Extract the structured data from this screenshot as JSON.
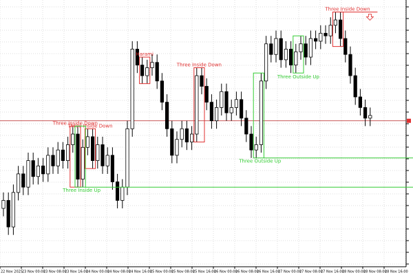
{
  "chart_data": {
    "type": "candlestick",
    "ylim": [
      0,
      100
    ],
    "price_line": 55,
    "up_color": "#ffffff",
    "down_color": "#000000",
    "grid": true,
    "open": [
      22,
      25,
      15,
      28,
      35,
      30,
      40,
      34,
      38,
      35,
      42,
      38,
      44,
      40,
      46,
      50,
      33,
      45,
      49,
      40,
      46,
      38,
      42,
      32,
      25,
      30,
      52,
      82,
      76,
      72,
      75,
      77,
      70,
      62,
      52,
      42,
      48,
      52,
      47,
      50,
      72,
      68,
      62,
      55,
      60,
      66,
      58,
      60,
      63,
      56,
      50,
      44,
      46,
      70,
      84,
      80,
      86,
      78,
      82,
      76,
      81,
      84,
      79,
      86,
      85,
      88,
      87,
      91,
      93,
      86,
      80,
      72,
      64,
      60,
      56
    ],
    "high": [
      28,
      28,
      31,
      38,
      38,
      43,
      43,
      41,
      41,
      45,
      45,
      47,
      47,
      49,
      53,
      53,
      48,
      52,
      52,
      49,
      49,
      45,
      45,
      35,
      33,
      55,
      85,
      85,
      79,
      78,
      80,
      80,
      73,
      65,
      55,
      51,
      55,
      55,
      53,
      75,
      75,
      71,
      65,
      63,
      69,
      69,
      63,
      66,
      66,
      59,
      53,
      49,
      73,
      87,
      87,
      89,
      89,
      85,
      85,
      84,
      87,
      87,
      89,
      89,
      91,
      91,
      94,
      96,
      96,
      89,
      83,
      75,
      67,
      63,
      60
    ],
    "low": [
      19,
      12,
      12,
      25,
      27,
      27,
      31,
      31,
      32,
      32,
      35,
      35,
      37,
      37,
      43,
      30,
      30,
      42,
      37,
      37,
      35,
      35,
      29,
      22,
      22,
      27,
      49,
      73,
      69,
      69,
      72,
      67,
      59,
      49,
      39,
      39,
      45,
      44,
      44,
      47,
      65,
      59,
      52,
      52,
      57,
      55,
      55,
      57,
      53,
      47,
      41,
      41,
      43,
      67,
      77,
      77,
      75,
      75,
      73,
      73,
      78,
      76,
      76,
      82,
      82,
      84,
      84,
      88,
      83,
      77,
      69,
      61,
      57,
      53,
      53
    ],
    "close": [
      25,
      15,
      28,
      35,
      30,
      40,
      34,
      38,
      35,
      42,
      38,
      44,
      40,
      46,
      50,
      33,
      45,
      49,
      40,
      46,
      38,
      42,
      32,
      25,
      30,
      52,
      82,
      76,
      72,
      75,
      77,
      70,
      62,
      52,
      42,
      48,
      52,
      47,
      50,
      72,
      68,
      62,
      55,
      60,
      66,
      58,
      60,
      63,
      56,
      50,
      44,
      46,
      70,
      84,
      80,
      86,
      78,
      82,
      76,
      81,
      84,
      79,
      86,
      85,
      88,
      87,
      91,
      93,
      86,
      80,
      72,
      64,
      60,
      56,
      57
    ],
    "time_labels": [
      "22 Nov 2025",
      "23 Nov 00:00",
      "23 Nov 08:00",
      "23 Nov 16:00",
      "24 Nov 00:00",
      "24 Nov 08:00",
      "24 Nov 16:00",
      "25 Nov 00:00",
      "25 Nov 08:00",
      "25 Nov 16:00",
      "26 Nov 00:00",
      "26 Nov 08:00",
      "26 Nov 16:00",
      "27 Nov 00:00",
      "27 Nov 08:00",
      "27 Nov 16:00",
      "28 Nov 00:00",
      "28 Nov 08:00",
      "28 Nov 16:00"
    ],
    "patterns": [
      {
        "label": "Three Inside Down",
        "color": "#e03030"
      },
      {
        "label": "Three Inside Down",
        "color": "#e03030"
      },
      {
        "label": "Three Inside Up",
        "color": "#33cc33"
      },
      {
        "label": "Harami",
        "color": "#e03030"
      },
      {
        "label": "Three Inside Down",
        "color": "#e03030"
      },
      {
        "label": "Three Outside Up",
        "color": "#33cc33"
      },
      {
        "label": "Three Outside Up",
        "color": "#33cc33"
      },
      {
        "label": "Three Inside Down",
        "color": "#e03030"
      }
    ]
  }
}
